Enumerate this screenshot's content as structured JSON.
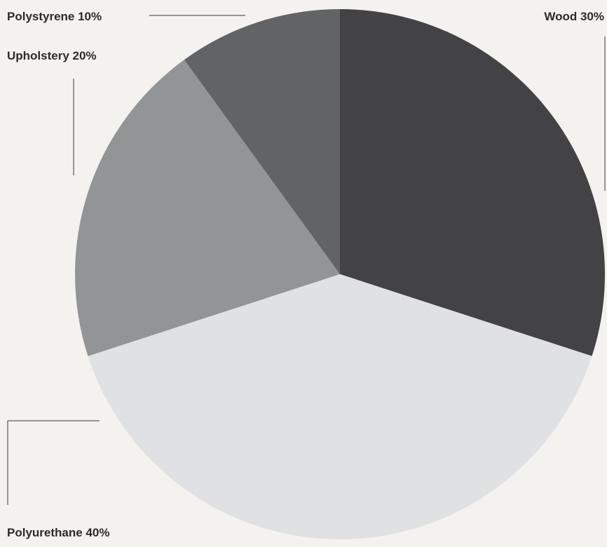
{
  "chart_data": {
    "type": "pie",
    "slices": [
      {
        "label": "Wood",
        "value": 30,
        "display": "Wood 30%",
        "color": "#434345"
      },
      {
        "label": "Polyurethane",
        "value": 40,
        "display": "Polyurethane 40%",
        "color": "#e0e1e3"
      },
      {
        "label": "Upholstery",
        "value": 20,
        "display": "Upholstery 20%",
        "color": "#939496"
      },
      {
        "label": "Polystyrene",
        "value": 10,
        "display": "Polystyrene 10%",
        "color": "#626365"
      }
    ],
    "start_angle": "12 o'clock",
    "direction": "clockwise"
  }
}
